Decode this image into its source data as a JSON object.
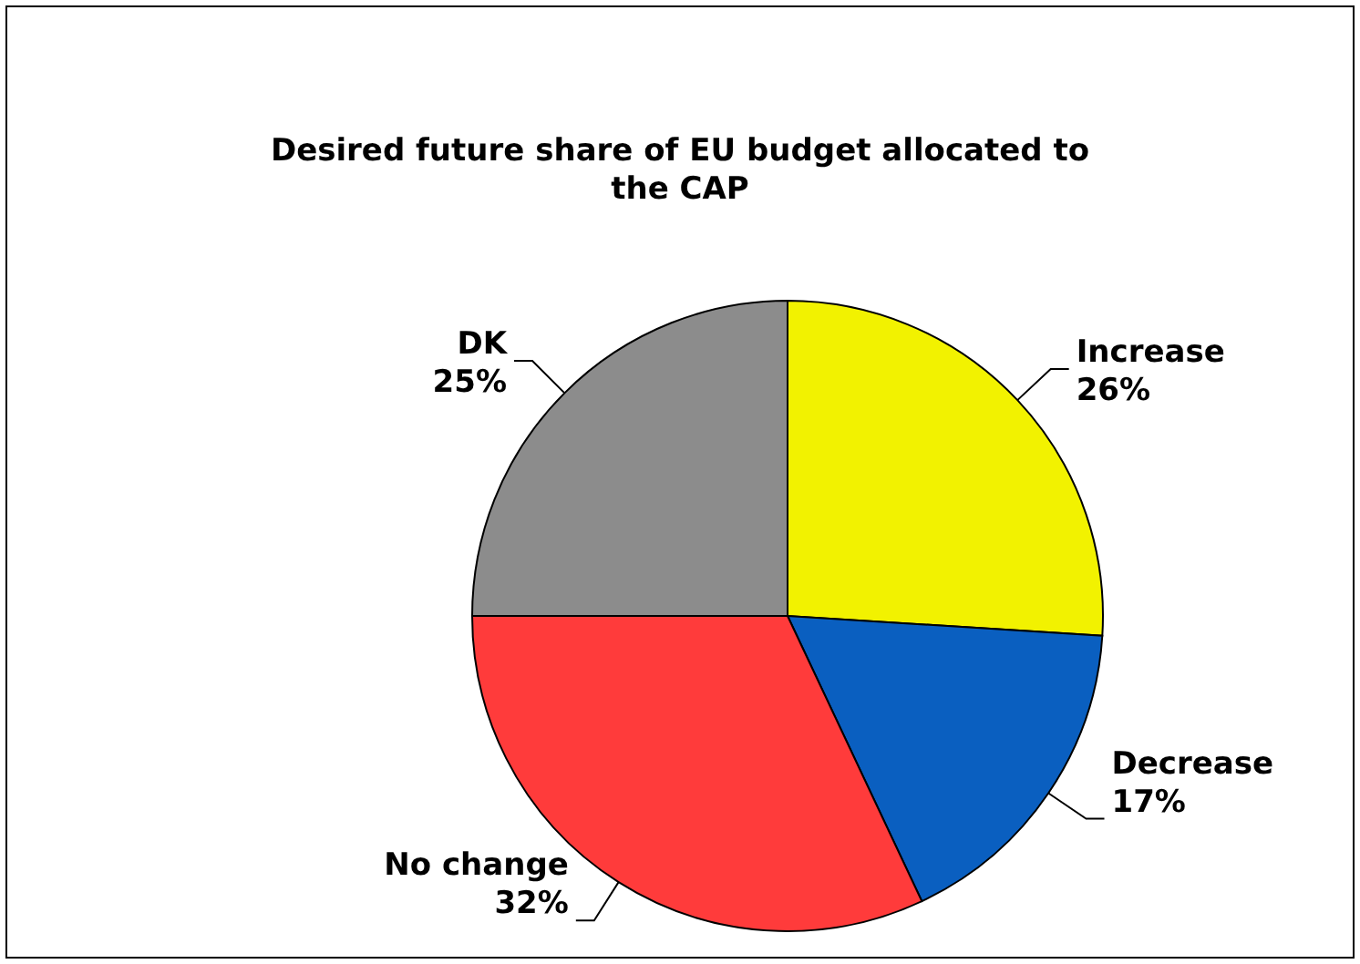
{
  "chart_data": {
    "type": "pie",
    "title": "Desired future share of EU budget allocated to the CAP",
    "categories": [
      "Increase",
      "Decrease",
      "No change",
      "DK"
    ],
    "values": [
      26,
      17,
      32,
      25
    ],
    "colors": [
      "#f2f200",
      "#0a5fc0",
      "#ff3b3b",
      "#8c8c8c"
    ],
    "value_labels": [
      "26%",
      "17%",
      "32%",
      "25%"
    ],
    "legend": false
  }
}
